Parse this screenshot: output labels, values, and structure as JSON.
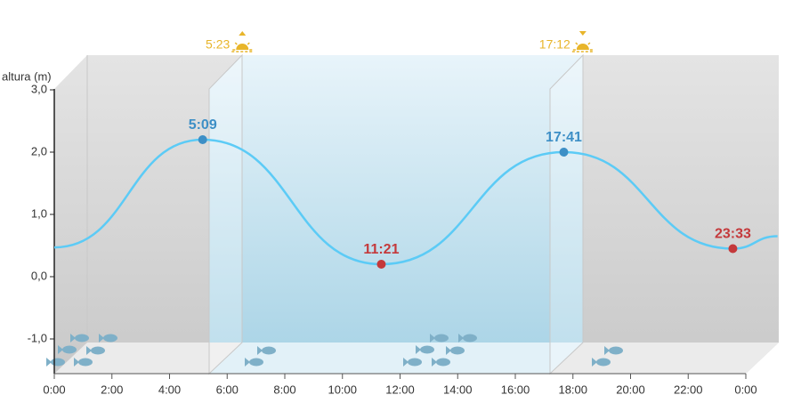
{
  "chart_data": {
    "type": "line",
    "y_label": "altura (m)",
    "xlim": [
      0,
      24
    ],
    "ylim": [
      -1.5,
      3
    ],
    "yticks": [
      {
        "value": 3,
        "label": "3,0"
      },
      {
        "value": 2,
        "label": "2,0"
      },
      {
        "value": 1,
        "label": "1,0"
      },
      {
        "value": 0,
        "label": "0,0"
      },
      {
        "value": -1,
        "label": "-1,0"
      }
    ],
    "xticks": [
      {
        "value": 0,
        "label": "0:00"
      },
      {
        "value": 2,
        "label": "2:00"
      },
      {
        "value": 4,
        "label": "4:00"
      },
      {
        "value": 6,
        "label": "6:00"
      },
      {
        "value": 8,
        "label": "8:00"
      },
      {
        "value": 10,
        "label": "10:00"
      },
      {
        "value": 12,
        "label": "12:00"
      },
      {
        "value": 14,
        "label": "14:00"
      },
      {
        "value": 16,
        "label": "16:00"
      },
      {
        "value": 18,
        "label": "18:00"
      },
      {
        "value": 20,
        "label": "20:00"
      },
      {
        "value": 22,
        "label": "22:00"
      },
      {
        "value": 24,
        "label": "0:00"
      }
    ],
    "series": [
      {
        "color": "#5ccbf6",
        "x": [
          0,
          5.15,
          11.35,
          17.683,
          23.55,
          25.1
        ],
        "values": [
          0.47,
          2.2,
          0.2,
          2.0,
          0.45,
          0.65
        ],
        "point_labels": [
          null,
          "5:09",
          "11:21",
          "17:41",
          "23:33",
          null
        ],
        "point_colors": [
          null,
          "#3d8fc6",
          "#c4393b",
          "#3d8fc6",
          "#c4393b",
          null
        ]
      }
    ],
    "sun": {
      "x": [
        5.383,
        17.2
      ],
      "labels": [
        "5:23",
        "17:12"
      ],
      "color": "#e8b52a"
    }
  }
}
